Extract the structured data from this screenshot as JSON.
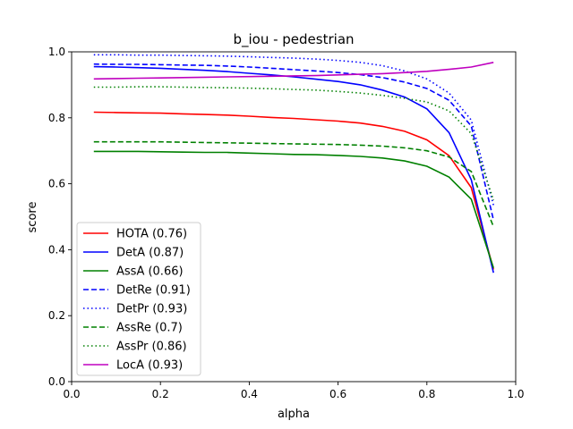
{
  "chart_data": {
    "type": "line",
    "title": "b_iou - pedestrian",
    "xlabel": "alpha",
    "ylabel": "score",
    "xlim": [
      0.0,
      1.0
    ],
    "ylim": [
      0.0,
      1.0
    ],
    "xticks": [
      "0.0",
      "0.2",
      "0.4",
      "0.6",
      "0.8",
      "1.0"
    ],
    "yticks": [
      "0.0",
      "0.2",
      "0.4",
      "0.6",
      "0.8",
      "1.0"
    ],
    "grid": false,
    "legend_position": "lower-left",
    "x": [
      0.05,
      0.1,
      0.15,
      0.2,
      0.25,
      0.3,
      0.35,
      0.4,
      0.45,
      0.5,
      0.55,
      0.6,
      0.65,
      0.7,
      0.75,
      0.8,
      0.85,
      0.9,
      0.95
    ],
    "series": [
      {
        "name": "HOTA (0.76)",
        "color": "#ff0000",
        "dash": "solid",
        "values": [
          0.817,
          0.816,
          0.815,
          0.814,
          0.812,
          0.81,
          0.808,
          0.805,
          0.801,
          0.798,
          0.794,
          0.79,
          0.784,
          0.774,
          0.759,
          0.733,
          0.685,
          0.588,
          0.34
        ]
      },
      {
        "name": "DetA (0.87)",
        "color": "#0000ff",
        "dash": "solid",
        "values": [
          0.955,
          0.954,
          0.952,
          0.95,
          0.947,
          0.944,
          0.94,
          0.935,
          0.93,
          0.924,
          0.917,
          0.91,
          0.9,
          0.884,
          0.863,
          0.827,
          0.755,
          0.612,
          0.33
        ]
      },
      {
        "name": "AssA (0.66)",
        "color": "#008000",
        "dash": "solid",
        "values": [
          0.698,
          0.698,
          0.698,
          0.697,
          0.696,
          0.695,
          0.695,
          0.693,
          0.691,
          0.689,
          0.688,
          0.686,
          0.683,
          0.678,
          0.669,
          0.653,
          0.62,
          0.553,
          0.345
        ]
      },
      {
        "name": "DetRe (0.91)",
        "color": "#0000ff",
        "dash": "dashed",
        "values": [
          0.963,
          0.962,
          0.962,
          0.961,
          0.96,
          0.959,
          0.957,
          0.954,
          0.95,
          0.946,
          0.942,
          0.937,
          0.931,
          0.922,
          0.908,
          0.889,
          0.853,
          0.775,
          0.49
        ]
      },
      {
        "name": "DetPr (0.93)",
        "color": "#0000ff",
        "dash": "dotted",
        "values": [
          0.991,
          0.991,
          0.99,
          0.99,
          0.989,
          0.988,
          0.987,
          0.985,
          0.983,
          0.981,
          0.978,
          0.974,
          0.968,
          0.958,
          0.942,
          0.918,
          0.875,
          0.793,
          0.535
        ]
      },
      {
        "name": "AssRe (0.7)",
        "color": "#008000",
        "dash": "dashed",
        "values": [
          0.727,
          0.727,
          0.727,
          0.727,
          0.726,
          0.725,
          0.724,
          0.723,
          0.722,
          0.721,
          0.72,
          0.719,
          0.717,
          0.714,
          0.709,
          0.7,
          0.681,
          0.637,
          0.47
        ]
      },
      {
        "name": "AssPr (0.86)",
        "color": "#008000",
        "dash": "dotted",
        "values": [
          0.893,
          0.893,
          0.894,
          0.894,
          0.893,
          0.892,
          0.891,
          0.89,
          0.888,
          0.886,
          0.884,
          0.88,
          0.875,
          0.868,
          0.859,
          0.848,
          0.821,
          0.752,
          0.55
        ]
      },
      {
        "name": "LocA (0.93)",
        "color": "#bf00bf",
        "dash": "solid",
        "values": [
          0.918,
          0.919,
          0.92,
          0.921,
          0.922,
          0.923,
          0.924,
          0.925,
          0.926,
          0.927,
          0.928,
          0.93,
          0.932,
          0.934,
          0.937,
          0.941,
          0.947,
          0.954,
          0.968
        ]
      }
    ]
  }
}
